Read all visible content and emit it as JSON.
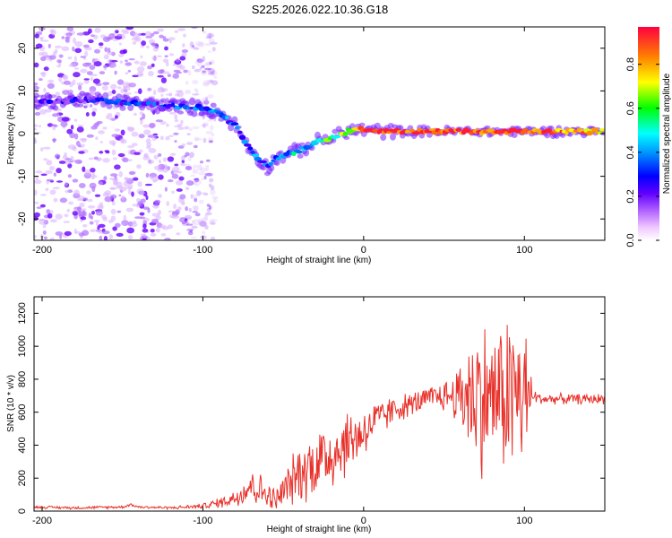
{
  "figure": {
    "title": "S225.2026.022.10.36.G18"
  },
  "chart_data": [
    {
      "type": "heatmap",
      "title": "S225.2026.022.10.36.G18",
      "xlabel": "Height of straight line (km)",
      "ylabel": "Frequency (Hz)",
      "xlim": [
        -205,
        150
      ],
      "ylim": [
        -25,
        25
      ],
      "xticks": [
        -200,
        -100,
        0,
        100
      ],
      "yticks": [
        -20,
        -10,
        0,
        10,
        20
      ],
      "colorbar": {
        "label": "Normalized spectral amplitude",
        "range": [
          0,
          0.97
        ],
        "ticks": [
          0.0,
          0.2,
          0.4,
          0.6,
          0.8
        ],
        "colormap": [
          "#ffffff",
          "#f0c8ff",
          "#8000ff",
          "#0000ff",
          "#00ffff",
          "#00ff00",
          "#ffff00",
          "#ff8000",
          "#ff0040"
        ]
      },
      "ridge": {
        "height_km": [
          -205,
          -190,
          -170,
          -155,
          -140,
          -120,
          -100,
          -90,
          -80,
          -75,
          -70,
          -65,
          -60,
          -55,
          -50,
          -40,
          -30,
          -20,
          -10,
          0,
          10,
          50,
          100,
          150
        ],
        "frequency_hz": [
          7.5,
          7.5,
          8,
          7.5,
          7,
          6.5,
          6,
          5,
          2,
          -1,
          -4,
          -6,
          -8,
          -6,
          -5,
          -4,
          -2,
          -1,
          0.5,
          1,
          0.5,
          0.5,
          0.5,
          0.5
        ],
        "amplitude": [
          0.2,
          0.2,
          0.25,
          0.35,
          0.3,
          0.3,
          0.35,
          0.35,
          0.35,
          0.35,
          0.35,
          0.35,
          0.35,
          0.4,
          0.45,
          0.45,
          0.5,
          0.6,
          0.65,
          0.9,
          0.97,
          0.9,
          0.9,
          0.8
        ]
      },
      "noise_region_km": [
        -205,
        -100
      ]
    },
    {
      "type": "line",
      "xlabel": "Height of straight line (km)",
      "ylabel": "SNR (10 * v/v)",
      "xlim": [
        -205,
        150
      ],
      "ylim": [
        0,
        1300
      ],
      "xticks": [
        -200,
        -100,
        0,
        100
      ],
      "yticks": [
        0,
        200,
        400,
        600,
        800,
        1000,
        1200
      ],
      "color": "#e8312a",
      "series": [
        {
          "x": [
            -205,
            -180,
            -150,
            -145,
            -140,
            -120,
            -100,
            -90,
            -80,
            -75,
            -70,
            -65,
            -60,
            -55,
            -50,
            -45,
            -40,
            -35,
            -30,
            -25,
            -20,
            -15,
            -10,
            -5,
            0,
            5,
            10,
            20,
            30,
            40,
            50,
            55,
            60,
            65,
            70,
            75,
            80,
            85,
            90,
            95,
            100,
            105,
            110,
            120,
            130,
            140,
            150
          ],
          "y": [
            25,
            20,
            25,
            40,
            25,
            20,
            30,
            50,
            80,
            120,
            160,
            130,
            100,
            60,
            120,
            180,
            230,
            260,
            300,
            320,
            350,
            380,
            420,
            450,
            480,
            530,
            560,
            620,
            650,
            680,
            700,
            700,
            700,
            720,
            700,
            690,
            700,
            700,
            720,
            700,
            700,
            700,
            680,
            680,
            680,
            680,
            680
          ],
          "amplitude": [
            8,
            8,
            8,
            8,
            8,
            8,
            15,
            30,
            50,
            90,
            110,
            100,
            80,
            70,
            100,
            140,
            170,
            190,
            210,
            220,
            220,
            210,
            190,
            170,
            150,
            130,
            110,
            80,
            70,
            70,
            90,
            120,
            200,
            350,
            450,
            450,
            380,
            420,
            500,
            500,
            450,
            60,
            30,
            30,
            30,
            30,
            30
          ]
        }
      ]
    }
  ]
}
